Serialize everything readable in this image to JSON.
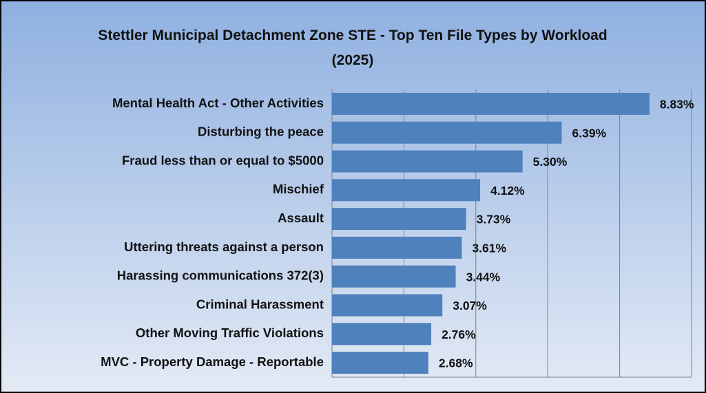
{
  "chart_data": {
    "type": "bar",
    "orientation": "horizontal",
    "title": "Stettler Municipal Detachment Zone STE - Top Ten File Types by Workload (2025)",
    "categories": [
      "Mental Health Act - Other Activities",
      "Disturbing the peace",
      "Fraud less than or equal to $5000 ",
      "Mischief",
      "Assault ",
      "Uttering threats against a person",
      "Harassing communications 372(3)",
      "Criminal Harassment",
      "Other Moving Traffic Violations",
      "MVC - Property Damage - Reportable"
    ],
    "values": [
      8.83,
      6.39,
      5.3,
      4.12,
      3.73,
      3.61,
      3.44,
      3.07,
      2.76,
      2.68
    ],
    "value_labels": [
      "8.83%",
      "6.39%",
      "5.30%",
      "4.12%",
      "3.73%",
      "3.61%",
      "3.44%",
      "3.07%",
      "2.76%",
      "2.68%"
    ],
    "color": "#4f81bd",
    "xlim": [
      0,
      10
    ],
    "xticks": [
      0,
      2,
      4,
      6,
      8,
      10
    ],
    "grid": true
  }
}
